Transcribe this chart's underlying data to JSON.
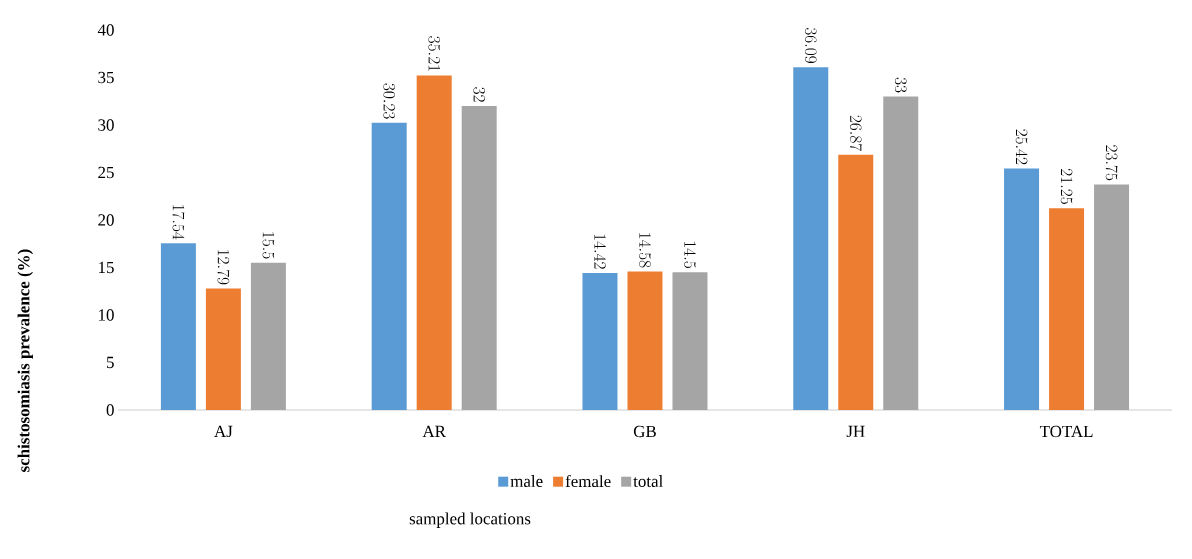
{
  "chart_data": {
    "type": "bar",
    "xlabel": "sampled locations",
    "ylabel": "schistosomiasis prevalence (%)",
    "categories": [
      "AJ",
      "AR",
      "GB",
      "JH",
      "TOTAL"
    ],
    "series": [
      {
        "name": "male",
        "color": "#5b9bd5",
        "values": [
          17.54,
          30.23,
          14.42,
          36.09,
          25.42
        ]
      },
      {
        "name": "female",
        "color": "#ed7d31",
        "values": [
          12.79,
          35.21,
          14.58,
          26.87,
          21.25
        ]
      },
      {
        "name": "total",
        "color": "#a5a5a5",
        "values": [
          15.5,
          32,
          14.5,
          33,
          23.75
        ]
      }
    ],
    "ylim": [
      0,
      40
    ],
    "yticks": [
      0,
      5,
      10,
      15,
      20,
      25,
      30,
      35,
      40
    ],
    "data_labels": true,
    "legend": "bottom",
    "grid": false
  }
}
